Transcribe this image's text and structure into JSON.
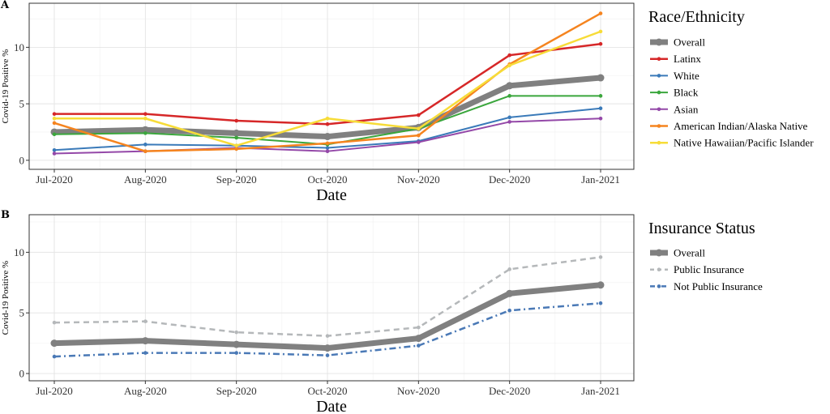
{
  "chart_data": [
    {
      "panel": "A",
      "type": "line",
      "xlabel": "Date",
      "ylabel": "Covid-19 Positive %",
      "categories": [
        "Jul-2020",
        "Aug-2020",
        "Sep-2020",
        "Oct-2020",
        "Nov-2020",
        "Dec-2020",
        "Jan-2021"
      ],
      "ylim": [
        -0.8,
        13.9
      ],
      "yticks": [
        0,
        5,
        10
      ],
      "grid": true,
      "legend": {
        "title": "Race/Ethnicity",
        "position": "right"
      },
      "series": [
        {
          "name": "Overall",
          "color": "#808080",
          "style": "solid",
          "width": 7,
          "values": [
            2.5,
            2.7,
            2.4,
            2.1,
            2.9,
            6.6,
            7.3
          ]
        },
        {
          "name": "Latinx",
          "color": "#d62728",
          "style": "solid",
          "width": 2.5,
          "values": [
            4.1,
            4.1,
            3.5,
            3.2,
            4.0,
            9.3,
            10.3
          ]
        },
        {
          "name": "White",
          "color": "#3a7ab9",
          "style": "solid",
          "width": 2,
          "values": [
            0.9,
            1.4,
            1.3,
            1.1,
            1.7,
            3.8,
            4.6
          ]
        },
        {
          "name": "Black",
          "color": "#3aa63c",
          "style": "solid",
          "width": 2,
          "values": [
            2.3,
            2.4,
            2.0,
            1.4,
            2.8,
            5.7,
            5.7
          ]
        },
        {
          "name": "Asian",
          "color": "#9448a8",
          "style": "solid",
          "width": 2,
          "values": [
            0.6,
            0.8,
            1.1,
            0.8,
            1.6,
            3.4,
            3.7
          ]
        },
        {
          "name": "American Indian/Alaska Native",
          "color": "#f5841f",
          "style": "solid",
          "width": 2.5,
          "values": [
            3.3,
            0.8,
            1.0,
            1.5,
            2.2,
            8.5,
            13.0
          ]
        },
        {
          "name": "Native Hawaiian/Pacific Islander",
          "color": "#f7dc38",
          "style": "solid",
          "width": 2.5,
          "values": [
            3.7,
            3.7,
            1.3,
            3.7,
            2.8,
            8.4,
            11.4
          ]
        }
      ]
    },
    {
      "panel": "B",
      "type": "line",
      "xlabel": "Date",
      "ylabel": "Covid-19 Positive %",
      "categories": [
        "Jul-2020",
        "Aug-2020",
        "Sep-2020",
        "Oct-2020",
        "Nov-2020",
        "Dec-2020",
        "Jan-2021"
      ],
      "ylim": [
        -0.6,
        13.1
      ],
      "yticks": [
        0,
        5,
        10
      ],
      "grid": true,
      "legend": {
        "title": "Insurance Status",
        "position": "right"
      },
      "series": [
        {
          "name": "Overall",
          "color": "#808080",
          "style": "solid",
          "width": 7,
          "values": [
            2.5,
            2.7,
            2.4,
            2.1,
            2.9,
            6.6,
            7.3
          ]
        },
        {
          "name": "Public Insurance",
          "color": "#b5b8ba",
          "style": "dashed",
          "width": 2.5,
          "values": [
            4.2,
            4.3,
            3.4,
            3.1,
            3.8,
            8.6,
            9.6
          ]
        },
        {
          "name": "Not Public Insurance",
          "color": "#4a79b6",
          "style": "dashdot",
          "width": 2.5,
          "values": [
            1.4,
            1.7,
            1.7,
            1.5,
            2.3,
            5.2,
            5.8
          ]
        }
      ]
    }
  ]
}
